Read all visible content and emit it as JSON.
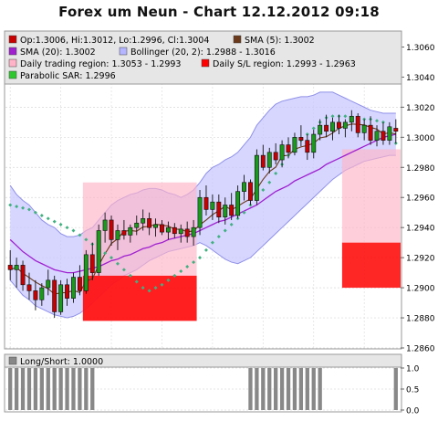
{
  "title": "Forex um Neun - Chart 12.12.2012 09:18",
  "legend": {
    "ohlc": "Op:1.3006, Hi:1.3012, Lo:1.2996, Cl:1.3004",
    "sma5": "SMA (5): 1.3002",
    "sma20": "SMA (20): 1.3002",
    "bollinger": "Bollinger (20, 2): 1.2988 - 1.3016",
    "daily_region": "Daily trading region: 1.3053 - 1.2993",
    "daily_sl": "Daily S/L region: 1.2993 - 1.2963",
    "psar": "Parabolic SAR: 1.2996"
  },
  "lower_legend": "Long/Short: 1.0000",
  "colors": {
    "bull_candle": "#1a9a1a",
    "bear_candle": "#c80000",
    "sma5": "#6b3a1a",
    "sma20": "#a020d0",
    "bollinger_fill": "#c8c8ff",
    "bollinger_line": "#9090e8",
    "region_fill": "#ffb4c8",
    "sl_fill": "#ff0000",
    "psar": "#40b080",
    "longshort_bar": "#888888"
  },
  "chart_data": [
    {
      "type": "candlestick",
      "name": "main",
      "ylim": [
        1.286,
        1.307
      ],
      "yticks": [
        "1.2860",
        "1.2880",
        "1.2900",
        "1.2920",
        "1.2940",
        "1.2960",
        "1.2980",
        "1.3000",
        "1.3020",
        "1.3040",
        "1.3060"
      ],
      "candles": [
        [
          1.2915,
          1.2925,
          1.2905,
          1.2912
        ],
        [
          1.2912,
          1.292,
          1.29,
          1.2915
        ],
        [
          1.2915,
          1.2918,
          1.2898,
          1.2902
        ],
        [
          1.2902,
          1.291,
          1.2892,
          1.2898
        ],
        [
          1.2898,
          1.2905,
          1.2885,
          1.2892
        ],
        [
          1.2892,
          1.2903,
          1.2888,
          1.29
        ],
        [
          1.29,
          1.2912,
          1.2895,
          1.2905
        ],
        [
          1.2905,
          1.2908,
          1.288,
          1.2884
        ],
        [
          1.2884,
          1.2905,
          1.2882,
          1.2902
        ],
        [
          1.2902,
          1.2906,
          1.2888,
          1.2893
        ],
        [
          1.2893,
          1.291,
          1.289,
          1.2907
        ],
        [
          1.2907,
          1.2915,
          1.2895,
          1.2898
        ],
        [
          1.2898,
          1.2925,
          1.2896,
          1.2922
        ],
        [
          1.2922,
          1.293,
          1.2905,
          1.291
        ],
        [
          1.291,
          1.2942,
          1.2908,
          1.2938
        ],
        [
          1.2938,
          1.295,
          1.293,
          1.2945
        ],
        [
          1.2945,
          1.2948,
          1.2928,
          1.2932
        ],
        [
          1.2932,
          1.2942,
          1.2925,
          1.2938
        ],
        [
          1.2938,
          1.2945,
          1.2932,
          1.2935
        ],
        [
          1.2935,
          1.2942,
          1.293,
          1.294
        ],
        [
          1.294,
          1.2948,
          1.2935,
          1.2943
        ],
        [
          1.2943,
          1.2952,
          1.2938,
          1.2946
        ],
        [
          1.2946,
          1.295,
          1.2935,
          1.294
        ],
        [
          1.294,
          1.2946,
          1.2934,
          1.2942
        ],
        [
          1.2942,
          1.2945,
          1.2935,
          1.2937
        ],
        [
          1.2937,
          1.2944,
          1.2932,
          1.294
        ],
        [
          1.294,
          1.2943,
          1.2933,
          1.2936
        ],
        [
          1.2936,
          1.2942,
          1.293,
          1.2939
        ],
        [
          1.2939,
          1.2944,
          1.293,
          1.2934
        ],
        [
          1.2934,
          1.2945,
          1.2928,
          1.294
        ],
        [
          1.294,
          1.2965,
          1.2935,
          1.296
        ],
        [
          1.296,
          1.2968,
          1.2948,
          1.2952
        ],
        [
          1.2952,
          1.2962,
          1.2945,
          1.2957
        ],
        [
          1.2957,
          1.2962,
          1.2943,
          1.2947
        ],
        [
          1.2947,
          1.296,
          1.2942,
          1.2955
        ],
        [
          1.2955,
          1.2963,
          1.2945,
          1.2948
        ],
        [
          1.2948,
          1.2968,
          1.2946,
          1.2964
        ],
        [
          1.2964,
          1.2975,
          1.2958,
          1.297
        ],
        [
          1.297,
          1.2972,
          1.2955,
          1.2958
        ],
        [
          1.2958,
          1.2992,
          1.2955,
          1.2988
        ],
        [
          1.2988,
          1.2995,
          1.2978,
          1.298
        ],
        [
          1.298,
          1.2993,
          1.2976,
          1.299
        ],
        [
          1.299,
          1.2996,
          1.2982,
          1.2985
        ],
        [
          1.2985,
          1.2998,
          1.298,
          1.2995
        ],
        [
          1.2995,
          1.3,
          1.2986,
          1.299
        ],
        [
          1.299,
          1.3003,
          1.2988,
          1.3
        ],
        [
          1.3,
          1.3008,
          1.2994,
          1.2998
        ],
        [
          1.2998,
          1.3002,
          1.2985,
          1.299
        ],
        [
          1.299,
          1.3005,
          1.2986,
          1.3002
        ],
        [
          1.3002,
          1.3012,
          1.2998,
          1.3008
        ],
        [
          1.3008,
          1.3015,
          1.3,
          1.3004
        ],
        [
          1.3004,
          1.3013,
          1.2998,
          1.301
        ],
        [
          1.301,
          1.3015,
          1.3002,
          1.3006
        ],
        [
          1.3006,
          1.3012,
          1.3,
          1.301
        ],
        [
          1.301,
          1.3018,
          1.3004,
          1.3014
        ],
        [
          1.3014,
          1.3016,
          1.3,
          1.3003
        ],
        [
          1.3003,
          1.3012,
          1.2998,
          1.3008
        ],
        [
          1.3008,
          1.3014,
          1.2995,
          1.2998
        ],
        [
          1.2998,
          1.3008,
          1.2994,
          1.3004
        ],
        [
          1.3004,
          1.301,
          1.2995,
          1.2998
        ],
        [
          1.2998,
          1.301,
          1.2995,
          1.3007
        ],
        [
          1.3006,
          1.3012,
          1.2996,
          1.3004
        ]
      ],
      "sma20": [
        1.2932,
        1.2928,
        1.2924,
        1.2921,
        1.2918,
        1.2916,
        1.2914,
        1.2912,
        1.2911,
        1.291,
        1.291,
        1.2911,
        1.2912,
        1.2913,
        1.2914,
        1.2916,
        1.2918,
        1.2919,
        1.2921,
        1.2922,
        1.2924,
        1.2926,
        1.2927,
        1.2929,
        1.293,
        1.2932,
        1.2933,
        1.2934,
        1.2935,
        1.2936,
        1.2938,
        1.294,
        1.2942,
        1.2944,
        1.2945,
        1.2947,
        1.2949,
        1.2951,
        1.2953,
        1.2955,
        1.2958,
        1.2961,
        1.2964,
        1.2966,
        1.2968,
        1.2971,
        1.2973,
        1.2975,
        1.2977,
        1.2979,
        1.2982,
        1.2984,
        1.2986,
        1.2988,
        1.299,
        1.2992,
        1.2994,
        1.2996,
        1.2998,
        1.3,
        1.3001,
        1.3002
      ],
      "bb_upper": [
        1.2968,
        1.2962,
        1.2958,
        1.2955,
        1.295,
        1.2945,
        1.2942,
        1.294,
        1.2936,
        1.2934,
        1.2934,
        1.2935,
        1.2938,
        1.294,
        1.2945,
        1.295,
        1.2955,
        1.2958,
        1.296,
        1.2962,
        1.2963,
        1.2965,
        1.2966,
        1.2966,
        1.2965,
        1.2963,
        1.2962,
        1.296,
        1.2962,
        1.2965,
        1.297,
        1.2976,
        1.298,
        1.2982,
        1.2985,
        1.2987,
        1.299,
        1.2995,
        1.3,
        1.3008,
        1.3013,
        1.3018,
        1.3022,
        1.3024,
        1.3025,
        1.3026,
        1.3027,
        1.3027,
        1.3028,
        1.303,
        1.303,
        1.303,
        1.3028,
        1.3026,
        1.3024,
        1.3022,
        1.302,
        1.3018,
        1.3017,
        1.3016,
        1.3016,
        1.3016
      ],
      "bb_lower": [
        1.2905,
        1.29,
        1.2895,
        1.2892,
        1.2888,
        1.2886,
        1.2884,
        1.2882,
        1.2881,
        1.288,
        1.2881,
        1.2883,
        1.2886,
        1.289,
        1.2894,
        1.2898,
        1.2902,
        1.2905,
        1.2908,
        1.291,
        1.2912,
        1.2915,
        1.2918,
        1.292,
        1.2922,
        1.2924,
        1.2925,
        1.2926,
        1.2927,
        1.2928,
        1.293,
        1.2928,
        1.2925,
        1.2922,
        1.2919,
        1.2917,
        1.2916,
        1.2918,
        1.292,
        1.2924,
        1.2928,
        1.2932,
        1.2936,
        1.294,
        1.2944,
        1.2948,
        1.2952,
        1.2956,
        1.296,
        1.2964,
        1.2968,
        1.2972,
        1.2975,
        1.2978,
        1.298,
        1.2982,
        1.2984,
        1.2985,
        1.2986,
        1.2987,
        1.2988,
        1.2988
      ],
      "psar": [
        1.2955,
        1.2954,
        1.2953,
        1.2952,
        1.295,
        1.2948,
        1.2946,
        1.2944,
        1.2942,
        1.294,
        1.2938,
        1.2935,
        1.2932,
        1.2929,
        1.2926,
        1.2923,
        1.292,
        1.2916,
        1.2912,
        1.2908,
        1.2904,
        1.29,
        1.2898,
        1.29,
        1.2902,
        1.2905,
        1.2908,
        1.2911,
        1.2914,
        1.2917,
        1.292,
        1.2925,
        1.293,
        1.2934,
        1.2938,
        1.2942,
        1.2946,
        1.295,
        1.2955,
        1.296,
        1.2965,
        1.297,
        1.2976,
        1.2982,
        1.2988,
        1.2993,
        1.2998,
        1.3002,
        1.3006,
        1.301,
        1.3013,
        1.3014,
        1.3014,
        1.3014,
        1.3013,
        1.3013,
        1.3012,
        1.3012,
        1.3011,
        1.301,
        1.3004,
        1.2996
      ],
      "regions": [
        {
          "from": 11.5,
          "to": 29.5,
          "region_high": 1.297,
          "region_low": 1.2878,
          "sl_high": 1.2908,
          "sl_low": 1.2878
        },
        {
          "from": 52.5,
          "to": 70.5,
          "region_high": 1.2992,
          "region_low": 1.293,
          "sl_high": 1.293,
          "sl_low": 1.29
        },
        {
          "from": 86.5,
          "to": 88.5,
          "region_high": 1.3053,
          "region_low": 1.2993,
          "sl_high": 1.2993,
          "sl_low": 1.2963
        }
      ]
    },
    {
      "type": "bar",
      "name": "long_short",
      "ylim": [
        0,
        1
      ],
      "yticks": [
        "0.0",
        "0.5",
        "1.0"
      ],
      "values": [
        1,
        1,
        1,
        1,
        1,
        1,
        1,
        1,
        1,
        1,
        1,
        1,
        1,
        1,
        0,
        0,
        0,
        0,
        0,
        0,
        0,
        0,
        0,
        0,
        0,
        0,
        0,
        0,
        0,
        0,
        0,
        0,
        0,
        0,
        0,
        0,
        0,
        0,
        1,
        1,
        1,
        1,
        1,
        1,
        1,
        1,
        1,
        1,
        1,
        1,
        0,
        0,
        0,
        0,
        0,
        0,
        0,
        0,
        0,
        0,
        0,
        1
      ]
    }
  ]
}
